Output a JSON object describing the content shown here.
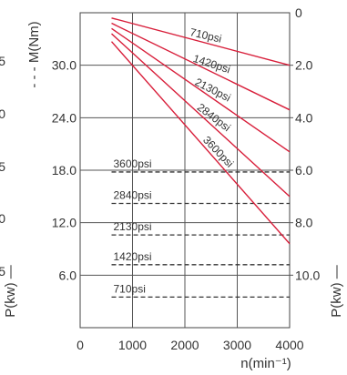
{
  "chart_data": {
    "type": "line",
    "x": [
      600,
      4000
    ],
    "x_ticks": [
      0,
      1000,
      2000,
      3000,
      4000
    ],
    "x_tick_labels": [
      "0",
      "1000",
      "2000",
      "3000",
      "4000"
    ],
    "xlabel": "n(min⁻¹)",
    "xlim": [
      0,
      4000
    ],
    "y_left_label": "- - - M(Nm)",
    "y_left_ticks": [
      6.0,
      12.0,
      18.0,
      24.0,
      30.0
    ],
    "y_left_tick_labels": [
      "6.0",
      "12.0",
      "18.0",
      "24.0",
      "30.0"
    ],
    "y_left_lim": [
      0,
      36
    ],
    "y_right_label": "P(kw) —",
    "y_right_ticks": [
      0,
      2.0,
      4.0,
      6.0,
      8.0,
      10.0
    ],
    "y_right_tick_labels": [
      "0",
      "2.0",
      "4.0",
      "6.0",
      "8.0",
      "10.0"
    ],
    "y_right_lim": [
      0,
      12
    ],
    "y_far_left_label": "P(kw) —",
    "y_far_left_tick_labels": [
      "5",
      "0",
      "5",
      "0",
      "5"
    ],
    "torque_series": [
      {
        "name": "3600psi",
        "values": [
          17.8,
          17.8
        ]
      },
      {
        "name": "2840psi",
        "values": [
          14.2,
          14.2
        ]
      },
      {
        "name": "2130psi",
        "values": [
          10.6,
          10.6
        ]
      },
      {
        "name": "1420psi",
        "values": [
          7.2,
          7.2
        ]
      },
      {
        "name": "710psi",
        "values": [
          3.5,
          3.5
        ]
      }
    ],
    "power_series": [
      {
        "name": "710psi",
        "values": [
          0.2,
          2.0
        ]
      },
      {
        "name": "1420psi",
        "values": [
          0.4,
          3.7
        ]
      },
      {
        "name": "2130psi",
        "values": [
          0.6,
          5.3
        ]
      },
      {
        "name": "2840psi",
        "values": [
          0.8,
          7.0
        ]
      },
      {
        "name": "3600psi",
        "values": [
          1.1,
          8.8
        ]
      }
    ],
    "colors": {
      "power": "#d81e3a",
      "torque": "#333333"
    },
    "grid": true
  }
}
